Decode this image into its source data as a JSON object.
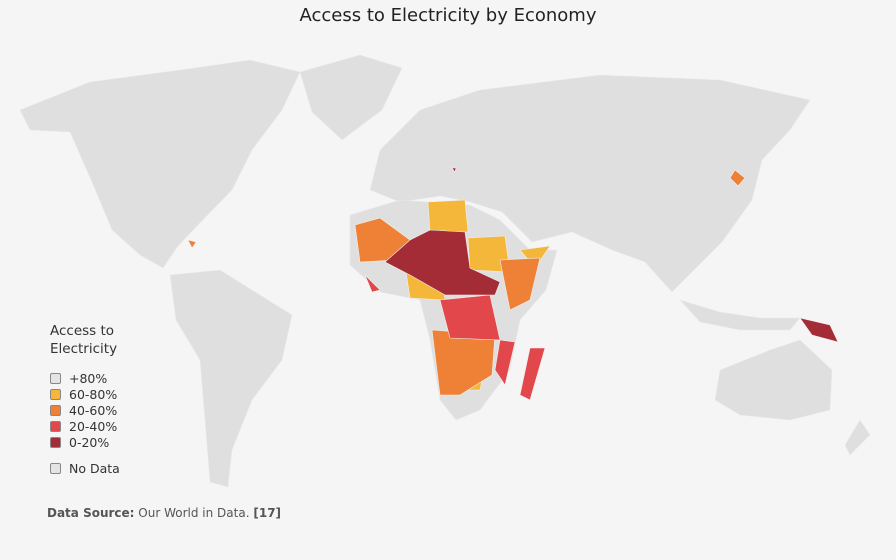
{
  "title": "Access to Electricity by Economy",
  "legend": {
    "title": "Access to Electricity",
    "items": [
      {
        "label": "+80%",
        "color": "#e4e4e4"
      },
      {
        "label": "60-80%",
        "color": "#f4b73a"
      },
      {
        "label": "40-60%",
        "color": "#ef8136"
      },
      {
        "label": "20-40%",
        "color": "#e2474c"
      },
      {
        "label": "0-20%",
        "color": "#a42c36"
      }
    ],
    "no_data": {
      "label": "No Data",
      "color": "#e4e4e4"
    }
  },
  "source": {
    "label": "Data Source:",
    "text": "Our World in Data.",
    "ref": "[17]"
  }
}
